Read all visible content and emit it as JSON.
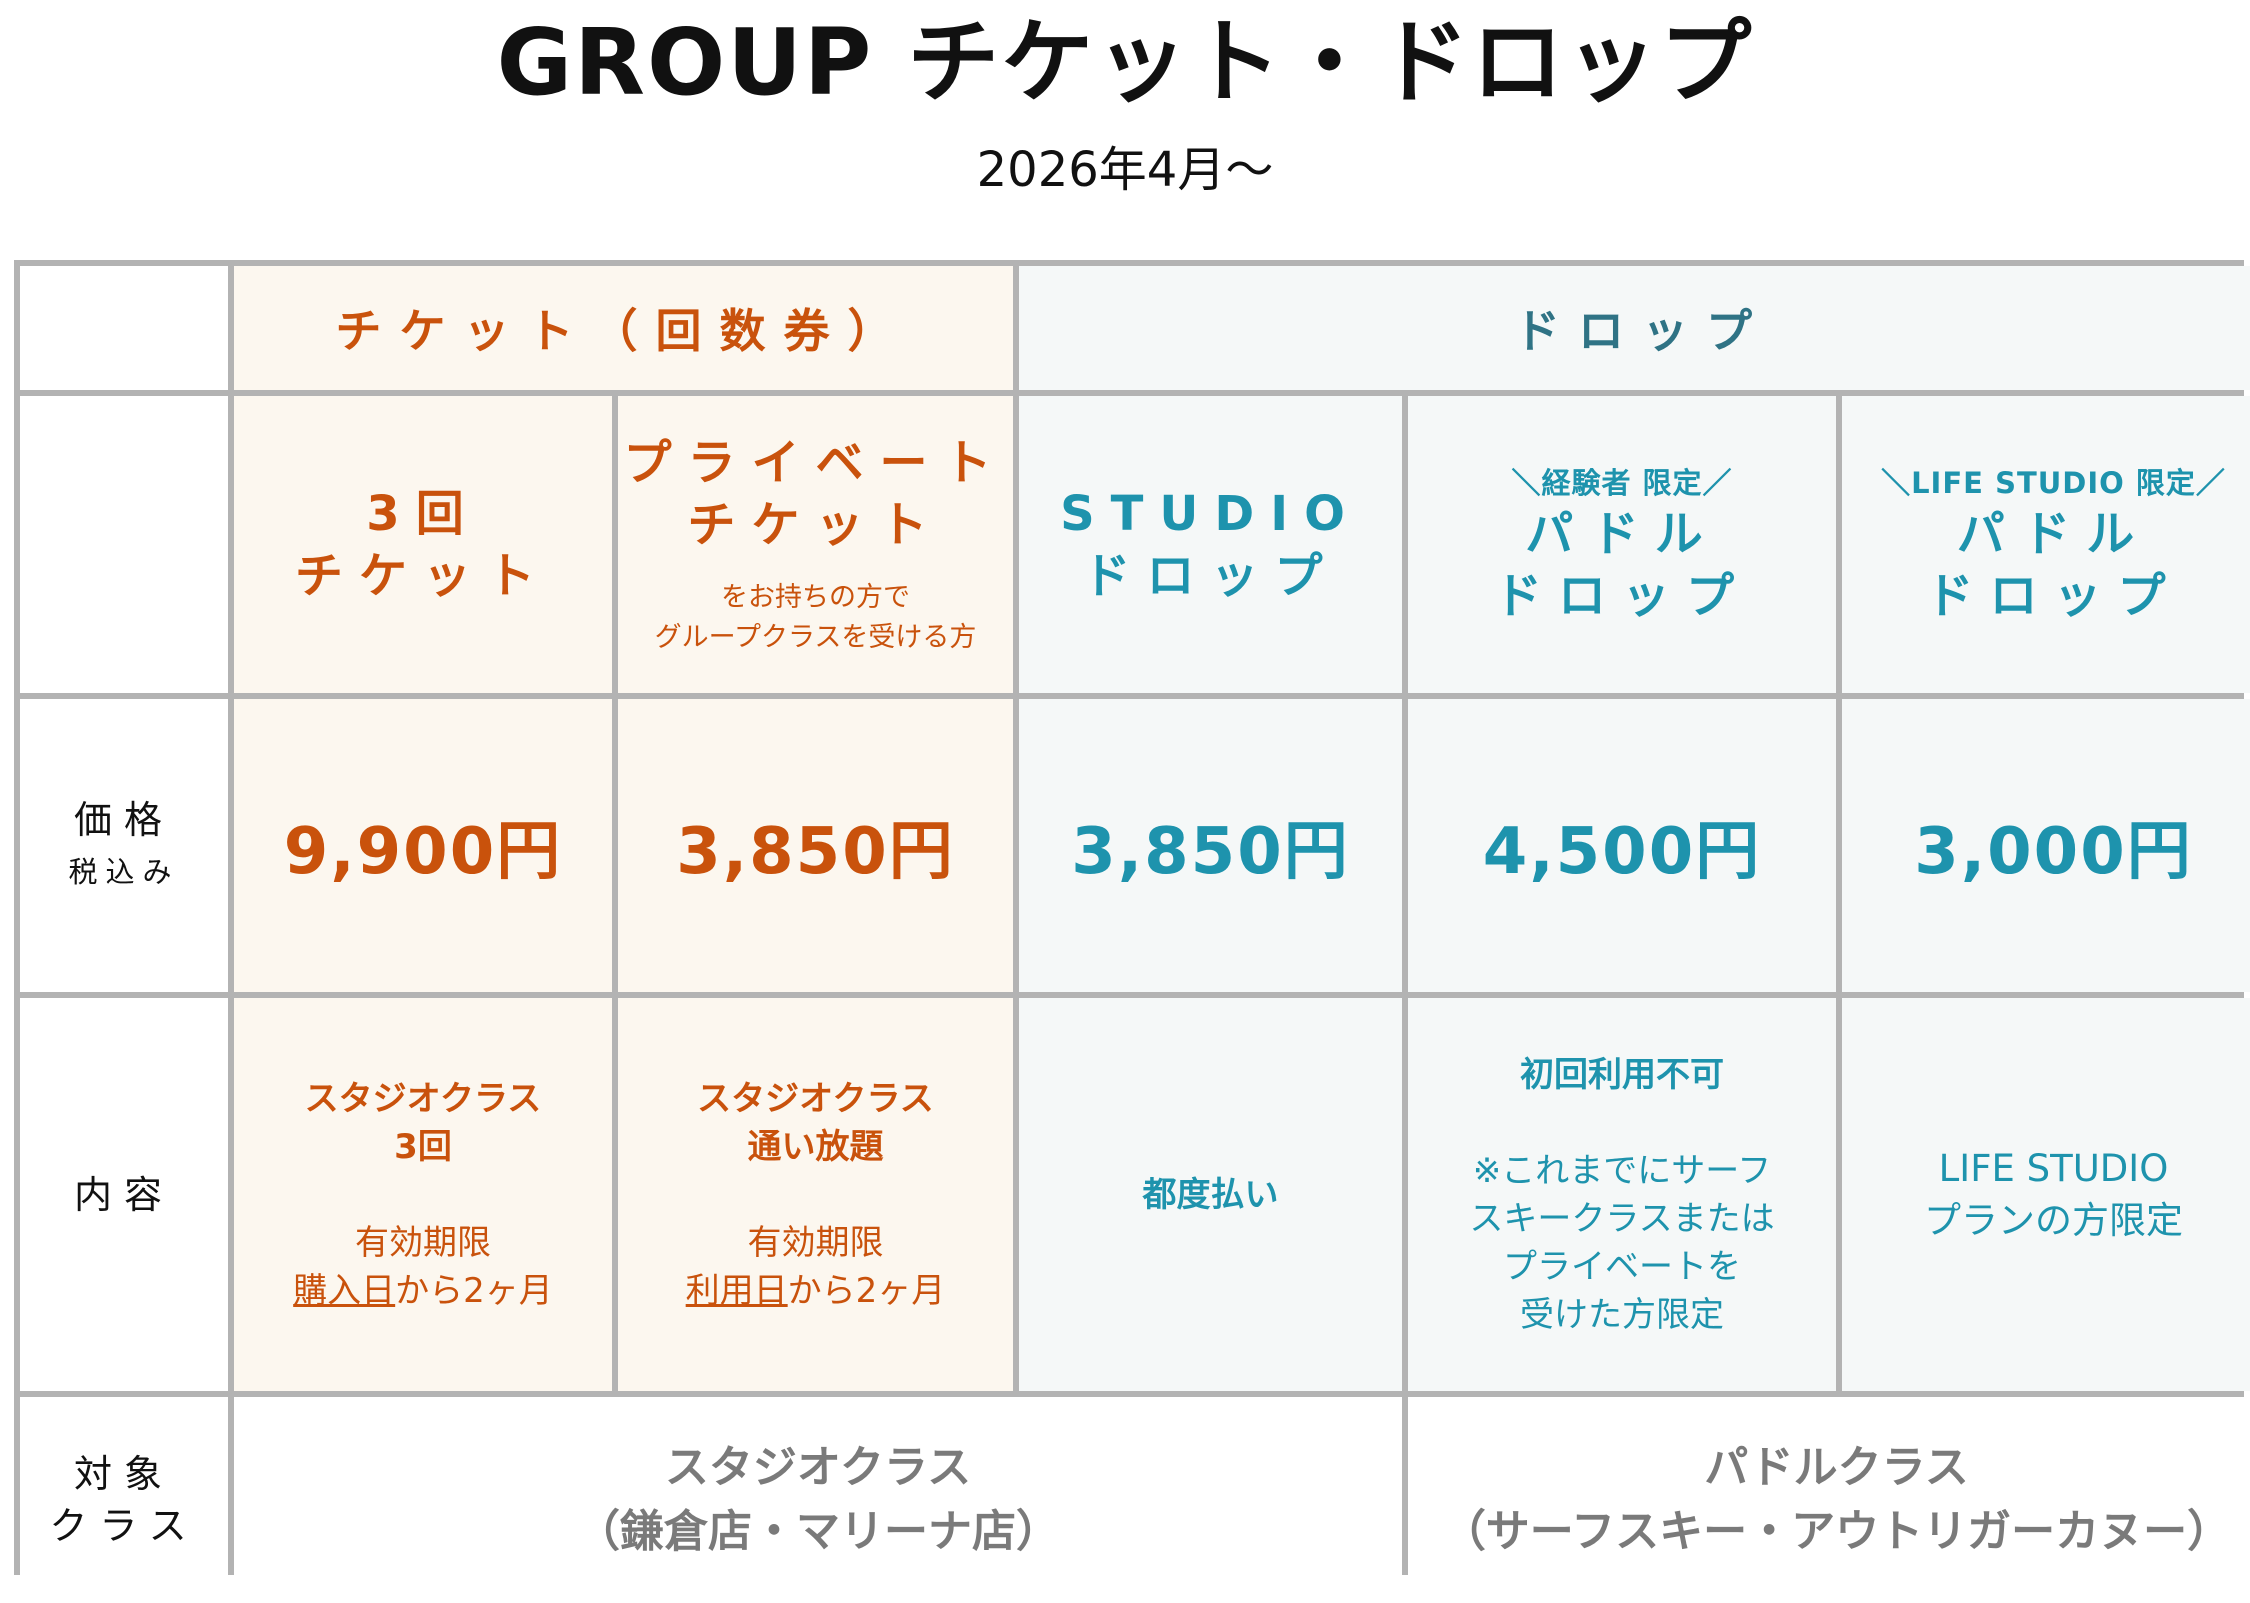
{
  "title": "GROUP チケット・ドロップ",
  "subtitle": "2026年4月〜",
  "headers": {
    "ticket": "チケット（回数券）",
    "drop": "ドロップ"
  },
  "products": [
    {
      "pre": "",
      "name1": "3回",
      "name2": "チケット",
      "note1": "",
      "note2": ""
    },
    {
      "pre": "",
      "name1": "プライベート",
      "name2": "チケット",
      "note1": "をお持ちの方で",
      "note2": "グループクラスを受ける方"
    },
    {
      "pre": "",
      "name1": "STUDIO",
      "name2": "ドロップ",
      "note1": "",
      "note2": ""
    },
    {
      "pre": "＼経験者 限定／",
      "name1": "パドル",
      "name2": "ドロップ",
      "note1": "",
      "note2": ""
    },
    {
      "pre": "＼LIFE STUDIO 限定／",
      "name1": "パドル",
      "name2": "ドロップ",
      "note1": "",
      "note2": ""
    }
  ],
  "price_label": {
    "main": "価格",
    "sub": "税込み"
  },
  "prices": [
    "9,900円",
    "3,850円",
    "3,850円",
    "4,500円",
    "3,000円"
  ],
  "content_label": "内容",
  "contents": [
    {
      "l1": "スタジオクラス",
      "l2": "3回",
      "l3": "有効期限",
      "l4_u": "購入日",
      "l4_rest": "から2ヶ月"
    },
    {
      "l1": "スタジオクラス",
      "l2": "通い放題",
      "l3": "有効期限",
      "l4_u": "利用日",
      "l4_rest": "から2ヶ月"
    },
    {
      "l1": "都度払い"
    },
    {
      "l1": "初回利用不可",
      "l2": "※これまでにサーフ",
      "l3": "スキークラスまたは",
      "l4": "プライベートを",
      "l5": "受けた方限定"
    },
    {
      "l1": "LIFE STUDIO",
      "l2": "プランの方限定"
    }
  ],
  "target_label": {
    "l1": "対象",
    "l2": "クラス"
  },
  "targets": [
    {
      "l1": "スタジオクラス",
      "l2": "（鎌倉店・マリーナ店）"
    },
    {
      "l1": "パドルクラス",
      "l2": "（サーフスキー・アウトリガーカヌー）"
    }
  ],
  "colors": {
    "ticket_text": "#c9520c",
    "drop_text": "#1e93ad",
    "ticket_bg": "#fcf7ef",
    "drop_bg": "#f5f8f8",
    "border": "#b3b3b3",
    "target_text": "#7a7a7a"
  }
}
